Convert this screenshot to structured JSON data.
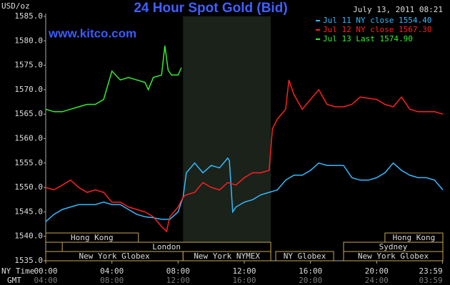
{
  "chart_data": {
    "type": "line",
    "title": "24 Hour Spot Gold (Bid)",
    "timestamp": "July 13, 2011 08:21",
    "watermark": "www.kitco.com",
    "y_label": "USD/oz",
    "x_label": "NY Time",
    "x2_label": "GMT",
    "xlim": [
      0,
      24
    ],
    "ylim": [
      1535,
      1585
    ],
    "xticks": [
      {
        "value": 0,
        "label": "00:00"
      },
      {
        "value": 4,
        "label": "04:00"
      },
      {
        "value": 8,
        "label": "08:00"
      },
      {
        "value": 12,
        "label": "12:00"
      },
      {
        "value": 16,
        "label": "16:00"
      },
      {
        "value": 20,
        "label": "20:00"
      },
      {
        "value": 23.983,
        "label": "23:59"
      }
    ],
    "x2ticks": [
      {
        "value": 0,
        "label": "04:00"
      },
      {
        "value": 4,
        "label": "08:00"
      },
      {
        "value": 8,
        "label": "12:00"
      },
      {
        "value": 12,
        "label": "16:00"
      },
      {
        "value": 16,
        "label": "20:00"
      },
      {
        "value": 20,
        "label": "24:00"
      },
      {
        "value": 23.983,
        "label": "03:59"
      }
    ],
    "yticks": [
      {
        "value": 1535,
        "label": "1535.0"
      },
      {
        "value": 1540,
        "label": "1540.0"
      },
      {
        "value": 1545,
        "label": "1545.0"
      },
      {
        "value": 1550,
        "label": "1550.0"
      },
      {
        "value": 1555,
        "label": "1555.0"
      },
      {
        "value": 1560,
        "label": "1560.0"
      },
      {
        "value": 1565,
        "label": "1565.0"
      },
      {
        "value": 1570,
        "label": "1570.0"
      },
      {
        "value": 1575,
        "label": "1575.0"
      },
      {
        "value": 1580,
        "label": "1580.0"
      },
      {
        "value": 1585,
        "label": "1585.0"
      }
    ],
    "grid": false,
    "sessions": [
      {
        "name": "Hong Kong",
        "start": 0,
        "end": 5.6
      },
      {
        "name": "London",
        "start": 1.0,
        "end": 13.6
      },
      {
        "name": "New York Globex",
        "start": 0,
        "end": 8.3
      },
      {
        "name": "New York NYMEX",
        "start": 8.3,
        "end": 13.6,
        "shaded": true
      },
      {
        "name": "NY Globex",
        "start": 13.9,
        "end": 17.4
      },
      {
        "name": "Sydney",
        "start": 18.0,
        "end": 24
      },
      {
        "name": "Hong Kong",
        "start": 20.5,
        "end": 24
      },
      {
        "name": "New York Globex",
        "start": 18.0,
        "end": 24
      }
    ],
    "series": [
      {
        "name": "Jul 11 NY close 1554.40",
        "color": "#33bbff",
        "x": [
          0,
          0.5,
          1,
          1.5,
          2,
          2.5,
          3,
          3.5,
          4,
          4.5,
          5,
          5.5,
          6,
          6.5,
          7,
          7.5,
          8,
          8.3,
          8.5,
          9,
          9.5,
          10,
          10.5,
          11,
          11.1,
          11.3,
          11.5,
          12,
          12.5,
          13,
          13.5,
          14,
          14.5,
          15,
          15.5,
          16,
          16.5,
          17,
          17.5,
          18,
          18.5,
          19,
          19.5,
          20,
          20.5,
          21,
          21.5,
          22,
          22.5,
          23,
          23.5,
          24
        ],
        "values": [
          1543.0,
          1544.5,
          1545.5,
          1546,
          1546.5,
          1546.5,
          1546.5,
          1547,
          1546.5,
          1546.5,
          1545.5,
          1544.5,
          1544,
          1543.8,
          1543.5,
          1543.5,
          1545,
          1548,
          1553,
          1555,
          1553,
          1554.5,
          1554,
          1556,
          1555.5,
          1545,
          1546,
          1547,
          1547.5,
          1548.5,
          1549,
          1549.5,
          1551.5,
          1552.5,
          1552.5,
          1553.5,
          1555,
          1554.5,
          1554.5,
          1554.5,
          1552,
          1551.5,
          1551.5,
          1552,
          1553,
          1555,
          1553.5,
          1552.5,
          1552,
          1552,
          1551.5,
          1549.5
        ]
      },
      {
        "name": "Jul 12 NY close 1567.30",
        "color": "#ff2020",
        "x": [
          0,
          0.5,
          1,
          1.5,
          2,
          2.5,
          3,
          3.5,
          4,
          4.5,
          5,
          5.5,
          6,
          6.5,
          7,
          7.3,
          7.5,
          8,
          8.3,
          8.5,
          9,
          9.5,
          10,
          10.5,
          11,
          11.5,
          12,
          12.5,
          13,
          13.5,
          13.7,
          14,
          14.5,
          14.7,
          15,
          15.5,
          16,
          16.5,
          17,
          17.5,
          18,
          18.5,
          19,
          20,
          20.5,
          21,
          21.5,
          22,
          22.5,
          23,
          23.5,
          24
        ],
        "values": [
          1550,
          1549.5,
          1550.5,
          1551.5,
          1550,
          1549,
          1549.5,
          1549,
          1547,
          1547,
          1546,
          1545.5,
          1545,
          1544,
          1542,
          1541,
          1544,
          1546,
          1548,
          1548.5,
          1549,
          1551,
          1550,
          1549.5,
          1551,
          1550.5,
          1552,
          1553,
          1553,
          1553.5,
          1562,
          1564,
          1566,
          1572,
          1569,
          1566,
          1568,
          1570,
          1567,
          1566.5,
          1566.5,
          1567,
          1568.5,
          1568,
          1567,
          1566.5,
          1568.5,
          1566,
          1565.5,
          1565.5,
          1565.5,
          1565
        ]
      },
      {
        "name": "Jul 13 Last 1574.90",
        "color": "#33ee33",
        "x": [
          0,
          0.5,
          1,
          1.5,
          2,
          2.5,
          3,
          3.5,
          4,
          4.5,
          5,
          5.5,
          6,
          6.2,
          6.5,
          7,
          7.2,
          7.4,
          7.6,
          8,
          8.2
        ],
        "values": [
          1566,
          1565.5,
          1565.5,
          1566,
          1566.5,
          1567,
          1567,
          1568,
          1573.8,
          1572,
          1572.5,
          1572,
          1571.5,
          1570,
          1572.5,
          1573,
          1579,
          1574,
          1573,
          1573,
          1574.5
        ]
      }
    ]
  }
}
